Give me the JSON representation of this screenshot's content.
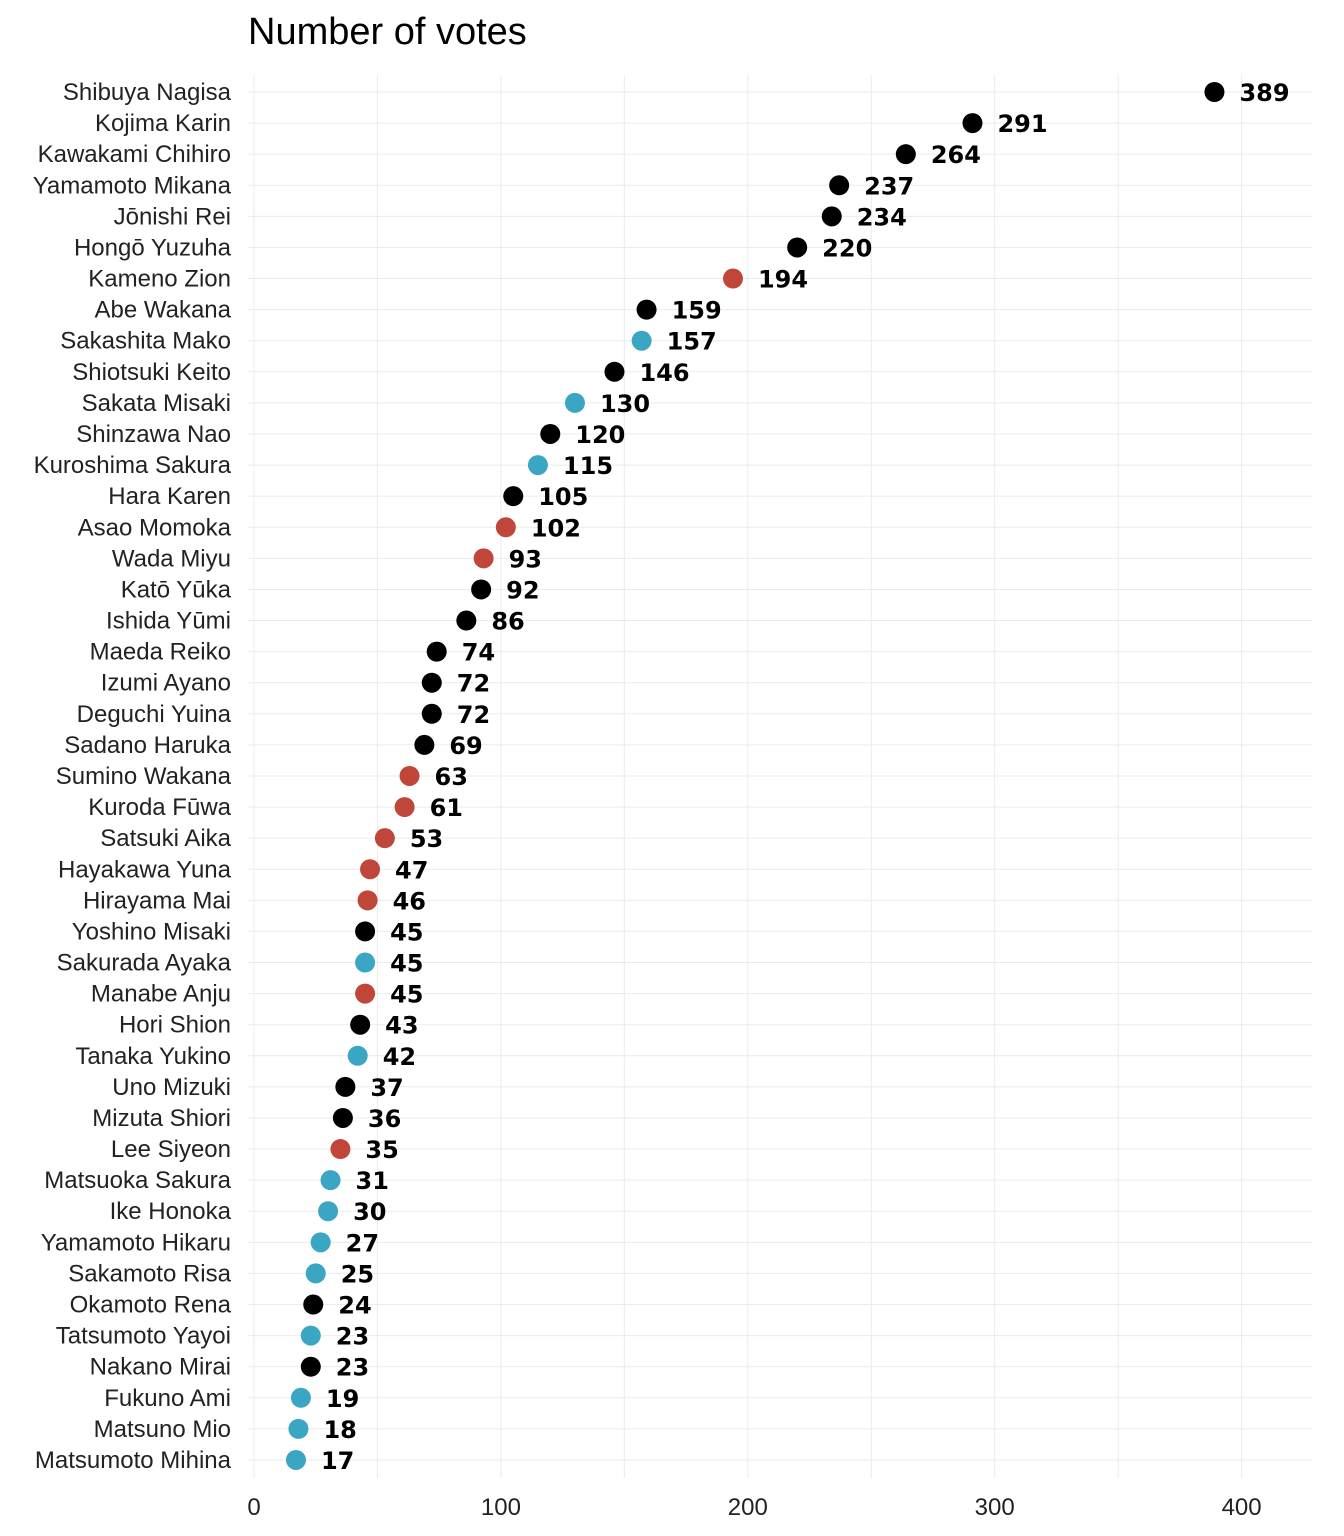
{
  "chart_data": {
    "type": "scatter",
    "title": "Number of votes",
    "xlabel": "",
    "ylabel": "",
    "xlim": [
      0,
      430
    ],
    "xticks": [
      0,
      100,
      200,
      300,
      400
    ],
    "grid": true,
    "legend": "none",
    "colors": {
      "black": "#000000",
      "red": "#c0463a",
      "blue": "#3aa6c4"
    },
    "points": [
      {
        "name": "Shibuya Nagisa",
        "value": 389,
        "color": "black"
      },
      {
        "name": "Kojima Karin",
        "value": 291,
        "color": "black"
      },
      {
        "name": "Kawakami Chihiro",
        "value": 264,
        "color": "black"
      },
      {
        "name": "Yamamoto Mikana",
        "value": 237,
        "color": "black"
      },
      {
        "name": "Jōnishi Rei",
        "value": 234,
        "color": "black"
      },
      {
        "name": "Hongō Yuzuha",
        "value": 220,
        "color": "black"
      },
      {
        "name": "Kameno Zion",
        "value": 194,
        "color": "red"
      },
      {
        "name": "Abe Wakana",
        "value": 159,
        "color": "black"
      },
      {
        "name": "Sakashita Mako",
        "value": 157,
        "color": "blue"
      },
      {
        "name": "Shiotsuki Keito",
        "value": 146,
        "color": "black"
      },
      {
        "name": "Sakata Misaki",
        "value": 130,
        "color": "blue"
      },
      {
        "name": "Shinzawa Nao",
        "value": 120,
        "color": "black"
      },
      {
        "name": "Kuroshima Sakura",
        "value": 115,
        "color": "blue"
      },
      {
        "name": "Hara Karen",
        "value": 105,
        "color": "black"
      },
      {
        "name": "Asao Momoka",
        "value": 102,
        "color": "red"
      },
      {
        "name": "Wada Miyu",
        "value": 93,
        "color": "red"
      },
      {
        "name": "Katō Yūka",
        "value": 92,
        "color": "black"
      },
      {
        "name": "Ishida Yūmi",
        "value": 86,
        "color": "black"
      },
      {
        "name": "Maeda Reiko",
        "value": 74,
        "color": "black"
      },
      {
        "name": "Izumi Ayano",
        "value": 72,
        "color": "black"
      },
      {
        "name": "Deguchi Yuina",
        "value": 72,
        "color": "black"
      },
      {
        "name": "Sadano Haruka",
        "value": 69,
        "color": "black"
      },
      {
        "name": "Sumino Wakana",
        "value": 63,
        "color": "red"
      },
      {
        "name": "Kuroda Fūwa",
        "value": 61,
        "color": "red"
      },
      {
        "name": "Satsuki Aika",
        "value": 53,
        "color": "red"
      },
      {
        "name": "Hayakawa Yuna",
        "value": 47,
        "color": "red"
      },
      {
        "name": "Hirayama Mai",
        "value": 46,
        "color": "red"
      },
      {
        "name": "Yoshino Misaki",
        "value": 45,
        "color": "black"
      },
      {
        "name": "Sakurada Ayaka",
        "value": 45,
        "color": "blue"
      },
      {
        "name": "Manabe Anju",
        "value": 45,
        "color": "red"
      },
      {
        "name": "Hori Shion",
        "value": 43,
        "color": "black"
      },
      {
        "name": "Tanaka Yukino",
        "value": 42,
        "color": "blue"
      },
      {
        "name": "Uno Mizuki",
        "value": 37,
        "color": "black"
      },
      {
        "name": "Mizuta Shiori",
        "value": 36,
        "color": "black"
      },
      {
        "name": "Lee Siyeon",
        "value": 35,
        "color": "red"
      },
      {
        "name": "Matsuoka Sakura",
        "value": 31,
        "color": "blue"
      },
      {
        "name": "Ike Honoka",
        "value": 30,
        "color": "blue"
      },
      {
        "name": "Yamamoto Hikaru",
        "value": 27,
        "color": "blue"
      },
      {
        "name": "Sakamoto Risa",
        "value": 25,
        "color": "blue"
      },
      {
        "name": "Okamoto Rena",
        "value": 24,
        "color": "black"
      },
      {
        "name": "Tatsumoto Yayoi",
        "value": 23,
        "color": "blue"
      },
      {
        "name": "Nakano Mirai",
        "value": 23,
        "color": "black"
      },
      {
        "name": "Fukuno Ami",
        "value": 19,
        "color": "blue"
      },
      {
        "name": "Matsuno Mio",
        "value": 18,
        "color": "blue"
      },
      {
        "name": "Matsumoto Mihina",
        "value": 17,
        "color": "blue"
      }
    ]
  }
}
